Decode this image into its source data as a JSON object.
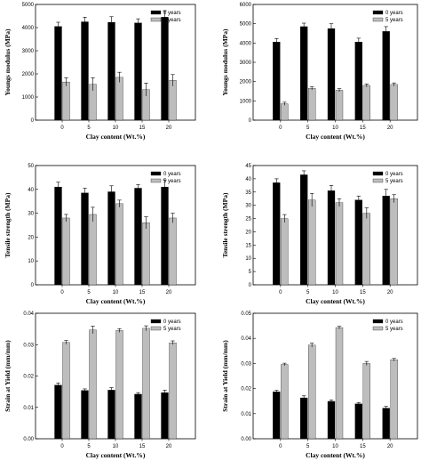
{
  "colors": {
    "series_0": "#000000",
    "series_5": "#bdbdbd",
    "axis": "#000000"
  },
  "chart_data": [
    {
      "type": "bar",
      "xlabel": "Clay content (Wt.%)",
      "ylabel": "Youngs modulus (MPa)",
      "categories": [
        "0",
        "5",
        "10",
        "15",
        "20"
      ],
      "ylim": [
        0,
        5000
      ],
      "yticks": [
        0,
        1000,
        2000,
        3000,
        4000,
        5000
      ],
      "ytick_labels": [
        "0",
        "1000",
        "2000",
        "3000",
        "4000",
        "5000"
      ],
      "legend": "top-right",
      "series": [
        {
          "name": "0 years",
          "values": [
            4050,
            4250,
            4230,
            4200,
            4450
          ],
          "errors": [
            180,
            200,
            240,
            180,
            280
          ]
        },
        {
          "name": "5 years",
          "values": [
            1650,
            1550,
            1850,
            1320,
            1720
          ],
          "errors": [
            180,
            280,
            220,
            280,
            250
          ]
        }
      ]
    },
    {
      "type": "bar",
      "xlabel": "Clay content (Wt.%)",
      "ylabel": "Youngs modulus (MPa)",
      "categories": [
        "0",
        "5",
        "10",
        "15",
        "20"
      ],
      "ylim": [
        0,
        6000
      ],
      "yticks": [
        0,
        1000,
        2000,
        3000,
        4000,
        5000,
        6000
      ],
      "ytick_labels": [
        "0",
        "1000",
        "2000",
        "3000",
        "4000",
        "5000",
        "6000"
      ],
      "legend": "top-right",
      "series": [
        {
          "name": "0 years",
          "values": [
            4050,
            4850,
            4750,
            4050,
            4600
          ],
          "errors": [
            180,
            180,
            250,
            200,
            250
          ]
        },
        {
          "name": "5 years",
          "values": [
            850,
            1650,
            1550,
            1800,
            1850
          ],
          "errors": [
            80,
            80,
            80,
            80,
            80
          ]
        }
      ]
    },
    {
      "type": "bar",
      "xlabel": "Clay content (Wt.%)",
      "ylabel": "Tensile strength (MPa)",
      "categories": [
        "0",
        "5",
        "10",
        "15",
        "20"
      ],
      "ylim": [
        0,
        50
      ],
      "yticks": [
        0,
        10,
        20,
        30,
        40,
        50
      ],
      "ytick_labels": [
        "0",
        "10",
        "20",
        "30",
        "40",
        "50"
      ],
      "legend": "top-right",
      "series": [
        {
          "name": "0 years",
          "values": [
            41,
            38.5,
            39,
            40.5,
            41
          ],
          "errors": [
            2,
            2,
            2.5,
            1.5,
            3
          ]
        },
        {
          "name": "5 years",
          "values": [
            28,
            29.5,
            34,
            26,
            28
          ],
          "errors": [
            1.5,
            3,
            1.5,
            2.5,
            2
          ]
        }
      ]
    },
    {
      "type": "bar",
      "xlabel": "Clay content (Wt.%)",
      "ylabel": "Tensile strength (MPa)",
      "categories": [
        "0",
        "5",
        "10",
        "15",
        "20"
      ],
      "ylim": [
        0,
        45
      ],
      "yticks": [
        0,
        5,
        10,
        15,
        20,
        25,
        30,
        35,
        40,
        45
      ],
      "ytick_labels": [
        "0",
        "5",
        "10",
        "15",
        "20",
        "25",
        "30",
        "35",
        "40",
        "45"
      ],
      "legend": "top-right",
      "series": [
        {
          "name": "0 years",
          "values": [
            38.5,
            41.5,
            35.5,
            32,
            33.5
          ],
          "errors": [
            1.5,
            1.5,
            2,
            1.5,
            2.5
          ]
        },
        {
          "name": "5 years",
          "values": [
            25,
            32,
            31,
            27,
            32.5
          ],
          "errors": [
            1.5,
            2.5,
            1.5,
            2,
            1.5
          ]
        }
      ]
    },
    {
      "type": "bar",
      "xlabel": "Clay content (Wt.%)",
      "ylabel": "Strain at Yield (mm/mm)",
      "categories": [
        "0",
        "5",
        "10",
        "15",
        "20"
      ],
      "ylim": [
        0,
        0.04
      ],
      "yticks": [
        0,
        0.01,
        0.02,
        0.03,
        0.04
      ],
      "ytick_labels": [
        "0.00",
        "0.01",
        "0.02",
        "0.03",
        "0.04"
      ],
      "legend": "top-right",
      "series": [
        {
          "name": "0 years",
          "values": [
            0.0171,
            0.0154,
            0.0155,
            0.0142,
            0.0147
          ],
          "errors": [
            0.0007,
            0.0005,
            0.0008,
            0.0005,
            0.0008
          ]
        },
        {
          "name": "5 years",
          "values": [
            0.0307,
            0.0347,
            0.0345,
            0.0352,
            0.0306
          ],
          "errors": [
            0.0006,
            0.0012,
            0.0006,
            0.0008,
            0.0006
          ]
        }
      ]
    },
    {
      "type": "bar",
      "xlabel": "Clay content (Wt.%)",
      "ylabel": "Strain at Yield (mm/mm)",
      "categories": [
        "0",
        "5",
        "10",
        "15",
        "20"
      ],
      "ylim": [
        0,
        0.05
      ],
      "yticks": [
        0,
        0.01,
        0.02,
        0.03,
        0.04,
        0.05
      ],
      "ytick_labels": [
        "0.00",
        "0.01",
        "0.02",
        "0.03",
        "0.04",
        "0.05"
      ],
      "legend": "top-right",
      "series": [
        {
          "name": "0 years",
          "values": [
            0.0187,
            0.0163,
            0.0149,
            0.0139,
            0.0122
          ],
          "errors": [
            0.0006,
            0.0008,
            0.0006,
            0.0005,
            0.0007
          ]
        },
        {
          "name": "5 years",
          "values": [
            0.0296,
            0.0373,
            0.0443,
            0.03,
            0.0315
          ],
          "errors": [
            0.0005,
            0.0008,
            0.0005,
            0.0008,
            0.0005
          ]
        }
      ]
    }
  ]
}
